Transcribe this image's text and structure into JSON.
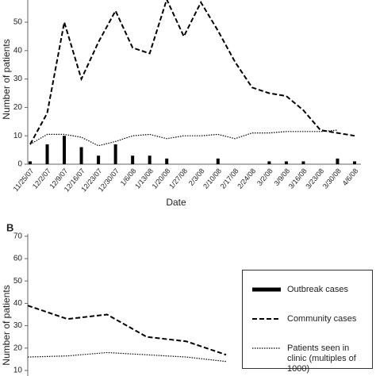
{
  "chart_data": [
    {
      "type": "line",
      "y_label": "Number of patients",
      "x_label": "Date",
      "categories": [
        "11/25/07",
        "12/2/07",
        "12/9/07",
        "12/16/07",
        "12/23/07",
        "12/30/07",
        "1/6/08",
        "1/13/08",
        "1/20/08",
        "1/27/08",
        "2/3/08",
        "2/10/08",
        "2/17/08",
        "2/24/08",
        "3/2/08",
        "3/9/08",
        "3/16/08",
        "3/23/08",
        "3/30/08",
        "4/6/08"
      ],
      "series": [
        {
          "style": "bar",
          "color": "#000000",
          "values": [
            1,
            7,
            10,
            6,
            3,
            7,
            3,
            3,
            2,
            0,
            0,
            2,
            0,
            0,
            1,
            1,
            1,
            0,
            2,
            1
          ]
        },
        {
          "style": "dashed",
          "color": "#000000",
          "values": [
            7,
            18,
            50,
            30,
            43,
            54,
            41,
            39,
            58,
            45,
            57,
            47,
            36,
            27,
            25,
            24,
            19,
            12,
            11,
            10
          ]
        },
        {
          "style": "dotted",
          "color": "#000000",
          "values": [
            7,
            10.5,
            10.5,
            9.5,
            6.5,
            8,
            10,
            10.5,
            9,
            10,
            10,
            10.5,
            9,
            11,
            11,
            11.5,
            11.5,
            11.5,
            12,
            null
          ]
        }
      ],
      "ylim": [
        0,
        60
      ],
      "yticks": [
        0,
        10,
        20,
        30,
        40,
        50
      ]
    },
    {
      "type": "line",
      "panel": "B",
      "y_label": "Number of patients",
      "categories": [
        null,
        null,
        null,
        null,
        null,
        null
      ],
      "series": [
        {
          "name": "Outbreak cases",
          "style": "bar",
          "color": "#000000",
          "values": [
            null,
            null,
            null,
            null,
            null,
            null
          ]
        },
        {
          "name": "Community cases",
          "style": "dashed",
          "color": "#000000",
          "values": [
            39,
            33,
            35,
            25,
            23,
            17
          ]
        },
        {
          "name": "Patients seen in clinic (multiples of 1000)",
          "style": "dotted",
          "color": "#000000",
          "values": [
            16,
            16.5,
            18,
            17,
            16,
            14
          ]
        }
      ],
      "ylim": [
        0,
        70
      ],
      "yticks": [
        10,
        20,
        30,
        40,
        50,
        60,
        70
      ]
    }
  ]
}
